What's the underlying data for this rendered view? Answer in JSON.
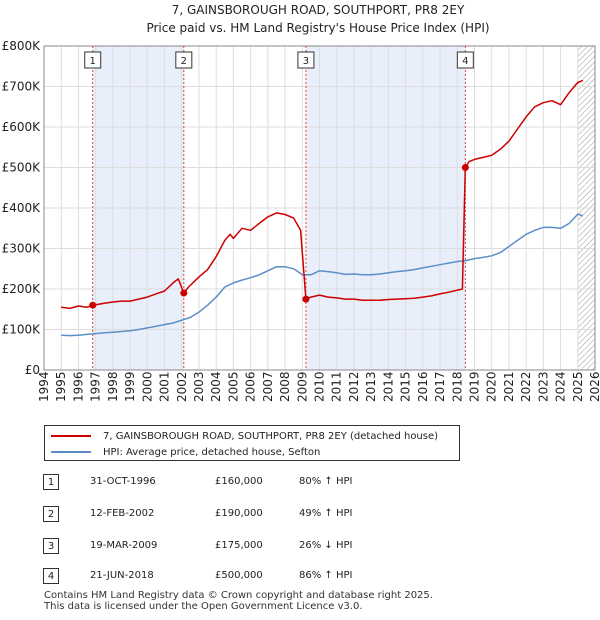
{
  "chart_data": {
    "type": "line",
    "title": "7, GAINSBOROUGH ROAD, SOUTHPORT, PR8 2EY",
    "subtitle": "Price paid vs. HM Land Registry's House Price Index (HPI)",
    "xlim": [
      1994,
      2026
    ],
    "ylim": [
      0,
      800000
    ],
    "x_ticks": [
      1994,
      1995,
      1996,
      1997,
      1998,
      1999,
      2000,
      2001,
      2002,
      2003,
      2004,
      2005,
      2006,
      2007,
      2008,
      2009,
      2010,
      2011,
      2012,
      2013,
      2014,
      2015,
      2016,
      2017,
      2018,
      2019,
      2020,
      2021,
      2022,
      2023,
      2024,
      2025,
      2026
    ],
    "y_ticks": [
      {
        "value": 0,
        "label": "£0"
      },
      {
        "value": 100000,
        "label": "£100K"
      },
      {
        "value": 200000,
        "label": "£200K"
      },
      {
        "value": 300000,
        "label": "£300K"
      },
      {
        "value": 400000,
        "label": "£400K"
      },
      {
        "value": 500000,
        "label": "£500K"
      },
      {
        "value": 600000,
        "label": "£600K"
      },
      {
        "value": 700000,
        "label": "£700K"
      },
      {
        "value": 800000,
        "label": "£800K"
      }
    ],
    "grid": true,
    "future_hatch_start": 2025.0,
    "shaded_periods": [
      [
        1996.83,
        2002.12
      ],
      [
        2009.21,
        2018.47
      ]
    ],
    "series": [
      {
        "name": "7, GAINSBOROUGH ROAD, SOUTHPORT, PR8 2EY (detached house)",
        "color": "#cc0000",
        "points": [
          [
            1995,
            155000
          ],
          [
            1995.5,
            152000
          ],
          [
            1996,
            158000
          ],
          [
            1996.5,
            155000
          ],
          [
            1996.83,
            160000
          ],
          [
            1997.5,
            165000
          ],
          [
            1998,
            168000
          ],
          [
            1998.5,
            170000
          ],
          [
            1999,
            170000
          ],
          [
            1999.5,
            175000
          ],
          [
            2000,
            180000
          ],
          [
            2000.5,
            188000
          ],
          [
            2001,
            195000
          ],
          [
            2001.5,
            215000
          ],
          [
            2001.8,
            225000
          ],
          [
            2002.12,
            190000
          ],
          [
            2002.4,
            205000
          ],
          [
            2003,
            230000
          ],
          [
            2003.5,
            248000
          ],
          [
            2004,
            280000
          ],
          [
            2004.5,
            320000
          ],
          [
            2004.8,
            335000
          ],
          [
            2005,
            325000
          ],
          [
            2005.5,
            350000
          ],
          [
            2006,
            345000
          ],
          [
            2006.5,
            362000
          ],
          [
            2007,
            378000
          ],
          [
            2007.5,
            388000
          ],
          [
            2008,
            384000
          ],
          [
            2008.5,
            375000
          ],
          [
            2008.9,
            345000
          ],
          [
            2009.21,
            175000
          ],
          [
            2009.5,
            180000
          ],
          [
            2010,
            185000
          ],
          [
            2010.5,
            180000
          ],
          [
            2011,
            178000
          ],
          [
            2011.5,
            175000
          ],
          [
            2012,
            175000
          ],
          [
            2012.5,
            172000
          ],
          [
            2013,
            172000
          ],
          [
            2013.5,
            172000
          ],
          [
            2014,
            174000
          ],
          [
            2014.5,
            175000
          ],
          [
            2015,
            176000
          ],
          [
            2015.5,
            177000
          ],
          [
            2016,
            180000
          ],
          [
            2016.5,
            183000
          ],
          [
            2017,
            188000
          ],
          [
            2017.5,
            192000
          ],
          [
            2018.3,
            200000
          ],
          [
            2018.47,
            500000
          ],
          [
            2018.7,
            515000
          ],
          [
            2019,
            520000
          ],
          [
            2019.5,
            525000
          ],
          [
            2020,
            530000
          ],
          [
            2020.5,
            545000
          ],
          [
            2021,
            565000
          ],
          [
            2021.5,
            595000
          ],
          [
            2022,
            625000
          ],
          [
            2022.5,
            650000
          ],
          [
            2023,
            660000
          ],
          [
            2023.5,
            665000
          ],
          [
            2024,
            655000
          ],
          [
            2024.5,
            685000
          ],
          [
            2025,
            710000
          ],
          [
            2025.3,
            715000
          ]
        ]
      },
      {
        "name": "HPI: Average price, detached house, Sefton",
        "color": "#5b8ec9",
        "points": [
          [
            1995,
            86000
          ],
          [
            1995.5,
            85000
          ],
          [
            1996,
            86000
          ],
          [
            1996.5,
            88000
          ],
          [
            1997,
            90000
          ],
          [
            1997.5,
            92000
          ],
          [
            1998,
            93000
          ],
          [
            1998.5,
            95000
          ],
          [
            1999,
            97000
          ],
          [
            1999.5,
            100000
          ],
          [
            2000,
            104000
          ],
          [
            2000.5,
            108000
          ],
          [
            2001,
            112000
          ],
          [
            2001.5,
            116000
          ],
          [
            2002,
            123000
          ],
          [
            2002.5,
            130000
          ],
          [
            2003,
            143000
          ],
          [
            2003.5,
            160000
          ],
          [
            2004,
            180000
          ],
          [
            2004.5,
            205000
          ],
          [
            2005,
            215000
          ],
          [
            2005.5,
            222000
          ],
          [
            2006,
            228000
          ],
          [
            2006.5,
            235000
          ],
          [
            2007,
            245000
          ],
          [
            2007.5,
            255000
          ],
          [
            2008,
            255000
          ],
          [
            2008.5,
            250000
          ],
          [
            2009,
            235000
          ],
          [
            2009.5,
            235000
          ],
          [
            2010,
            245000
          ],
          [
            2010.5,
            243000
          ],
          [
            2011,
            240000
          ],
          [
            2011.5,
            236000
          ],
          [
            2012,
            237000
          ],
          [
            2012.5,
            235000
          ],
          [
            2013,
            235000
          ],
          [
            2013.5,
            237000
          ],
          [
            2014,
            240000
          ],
          [
            2014.5,
            243000
          ],
          [
            2015,
            245000
          ],
          [
            2015.5,
            248000
          ],
          [
            2016,
            252000
          ],
          [
            2016.5,
            256000
          ],
          [
            2017,
            260000
          ],
          [
            2017.5,
            264000
          ],
          [
            2018,
            268000
          ],
          [
            2018.5,
            270000
          ],
          [
            2019,
            275000
          ],
          [
            2019.5,
            278000
          ],
          [
            2020,
            282000
          ],
          [
            2020.5,
            290000
          ],
          [
            2021,
            305000
          ],
          [
            2021.5,
            320000
          ],
          [
            2022,
            335000
          ],
          [
            2022.5,
            345000
          ],
          [
            2023,
            352000
          ],
          [
            2023.5,
            352000
          ],
          [
            2024,
            350000
          ],
          [
            2024.5,
            362000
          ],
          [
            2025,
            385000
          ],
          [
            2025.3,
            380000
          ]
        ]
      }
    ],
    "sale_markers": [
      {
        "num": "1",
        "x": 1996.83,
        "y": 160000
      },
      {
        "num": "2",
        "x": 2002.12,
        "y": 190000
      },
      {
        "num": "3",
        "x": 2009.21,
        "y": 175000
      },
      {
        "num": "4",
        "x": 2018.47,
        "y": 500000
      }
    ]
  },
  "legend": {
    "property_label": "7, GAINSBOROUGH ROAD, SOUTHPORT, PR8 2EY (detached house)",
    "hpi_label": "HPI: Average price, detached house, Sefton"
  },
  "sales": [
    {
      "num": "1",
      "date": "31-OCT-1996",
      "price": "£160,000",
      "hpi": "80% ↑ HPI"
    },
    {
      "num": "2",
      "date": "12-FEB-2002",
      "price": "£190,000",
      "hpi": "49% ↑ HPI"
    },
    {
      "num": "3",
      "date": "19-MAR-2009",
      "price": "£175,000",
      "hpi": "26% ↓ HPI"
    },
    {
      "num": "4",
      "date": "21-JUN-2018",
      "price": "£500,000",
      "hpi": "86% ↑ HPI"
    }
  ],
  "footer": {
    "line1": "Contains HM Land Registry data © Crown copyright and database right 2025.",
    "line2": "This data is licensed under the Open Government Licence v3.0."
  },
  "colors": {
    "property": "#cc0000",
    "hpi": "#5b8ec9",
    "shade": "#e8eefa"
  }
}
